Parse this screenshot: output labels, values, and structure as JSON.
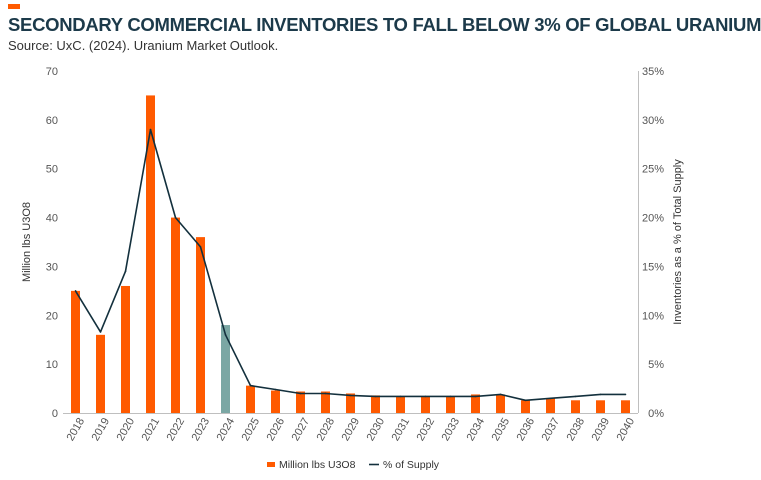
{
  "header": {
    "title": "SECONDARY COMMERCIAL INVENTORIES TO FALL BELOW 3% OF GLOBAL URANIUM",
    "subtitle": "Source: UxC. (2024).  Uranium Market Outlook.",
    "accent_color": "#ff5a00"
  },
  "chart_data": {
    "type": "bar",
    "categories": [
      "2018",
      "2019",
      "2020",
      "2021",
      "2022",
      "2023",
      "2024",
      "2025",
      "2026",
      "2027",
      "2028",
      "2029",
      "2030",
      "2031",
      "2032",
      "2033",
      "2034",
      "2035",
      "2036",
      "2037",
      "2038",
      "2039",
      "2040"
    ],
    "series": [
      {
        "name": "Million lbs U3O8",
        "type": "bar",
        "axis": "left",
        "color": "#ff5a00",
        "highlight_color": "#7ba7a4",
        "highlight_category": "2024",
        "values": [
          25,
          16,
          26,
          65,
          40,
          36,
          18,
          5.6,
          4.6,
          4.4,
          4.4,
          4.0,
          3.6,
          3.4,
          3.4,
          3.4,
          3.8,
          3.8,
          2.6,
          3.0,
          2.6,
          2.6,
          2.6
        ]
      },
      {
        "name": "% of Supply",
        "type": "line",
        "axis": "right",
        "color": "#13303d",
        "values": [
          12.5,
          8.3,
          14.5,
          29.0,
          20.0,
          17.0,
          8.0,
          2.8,
          2.4,
          2.0,
          2.0,
          1.8,
          1.7,
          1.7,
          1.7,
          1.7,
          1.7,
          1.9,
          1.3,
          1.5,
          1.7,
          1.9,
          1.9
        ]
      }
    ],
    "ylabel": "Million lbs U3O8",
    "y2label": "Inventories as a % of Total Supply",
    "ylim": [
      0,
      70
    ],
    "yticks": [
      "0",
      "10",
      "20",
      "30",
      "40",
      "50",
      "60",
      "70"
    ],
    "y2lim": [
      0,
      35
    ],
    "y2ticks": [
      "0%",
      "5%",
      "10%",
      "15%",
      "20%",
      "25%",
      "30%",
      "35%"
    ],
    "grid": false,
    "legend": "bottom"
  }
}
